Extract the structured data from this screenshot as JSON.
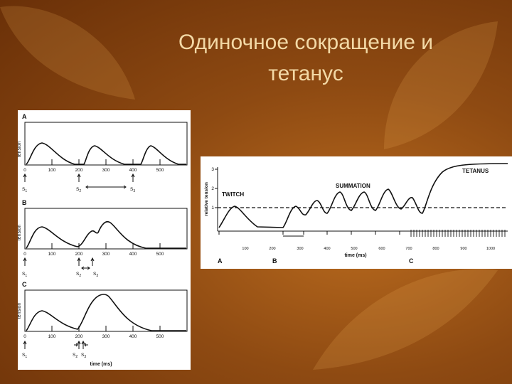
{
  "slide": {
    "title_line1": "Одиночное сокращение и",
    "title_line2": "тетанус"
  },
  "left_figure": {
    "y_label": "tension",
    "x_label": "time (ms)",
    "ticks": [
      "0",
      "100",
      "200",
      "300",
      "400",
      "500"
    ],
    "panels": [
      {
        "letter": "A",
        "stimuli": [
          {
            "label": "S",
            "sub": "1",
            "time_ms": 0
          },
          {
            "label": "S",
            "sub": "2",
            "time_ms": 200
          },
          {
            "label": "S",
            "sub": "3",
            "time_ms": 400
          }
        ]
      },
      {
        "letter": "B",
        "stimuli": [
          {
            "label": "S",
            "sub": "1",
            "time_ms": 0
          },
          {
            "label": "S",
            "sub": "2",
            "time_ms": 200
          },
          {
            "label": "S",
            "sub": "3",
            "time_ms": 250
          }
        ]
      },
      {
        "letter": "C",
        "stimuli": [
          {
            "label": "S",
            "sub": "1",
            "time_ms": 0
          },
          {
            "label": "S",
            "sub": "2",
            "time_ms": 200
          },
          {
            "label": "S",
            "sub": "3",
            "time_ms": 215
          }
        ]
      }
    ]
  },
  "right_figure": {
    "y_label": "relative tension",
    "y_ticks": [
      "3",
      "2",
      "1"
    ],
    "x_ticks": [
      "100",
      "200",
      "300",
      "400",
      "500",
      "600",
      "700",
      "800",
      "900",
      "1000"
    ],
    "x_label": "time (ms)",
    "labels": {
      "twitch": "TWITCH",
      "summation": "SUMMATION",
      "tetanus": "TETANUS",
      "section_a": "A",
      "section_b": "B",
      "section_c": "C"
    }
  }
}
